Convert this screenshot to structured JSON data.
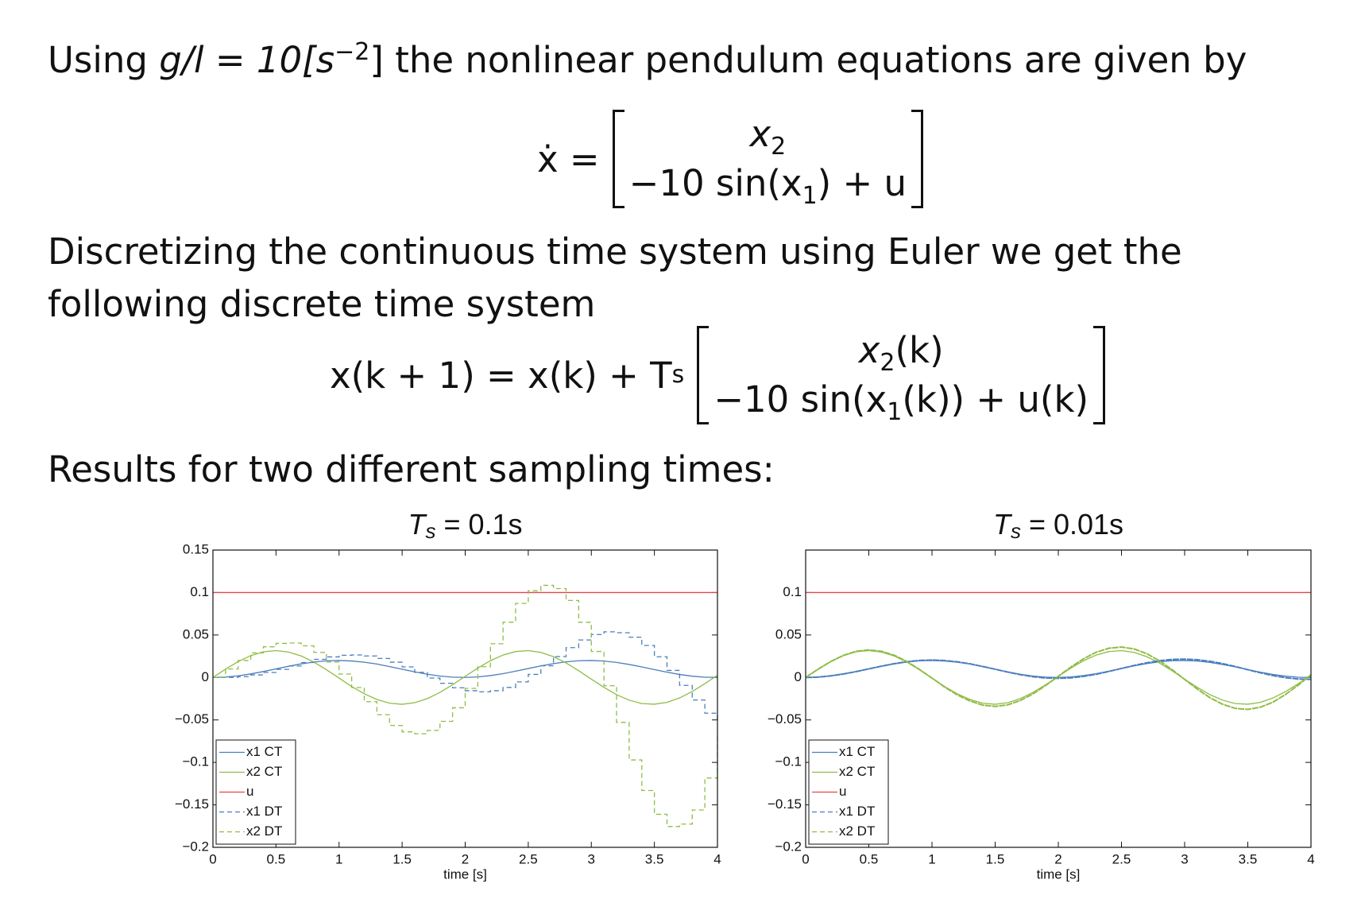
{
  "intro": {
    "before": "Using",
    "math": "g/l = 10[s",
    "sup": "−2",
    "math_after": "]",
    "after": "the nonlinear pendulum equations are given by"
  },
  "equation_1": {
    "lhs": "ẋ =",
    "row_1": {
      "var": "x",
      "sub": "2"
    },
    "row_2": {
      "before": "−10 sin(x",
      "sub": "1",
      "after": ") + u"
    }
  },
  "discretize": "Discretizing the continuous time system using Euler we get the following discrete time system",
  "equation_2": {
    "lhs": "x(k + 1) = x(k) + T",
    "lhs_sub": "s",
    "row_1": {
      "var": "x",
      "sub": "2",
      "after": "(k)"
    },
    "row_2": {
      "before": "−10 sin(x",
      "sub": "1",
      "after": "(k)) + u(k)"
    }
  },
  "results": "Results for two different sampling times:",
  "chart_data": [
    {
      "type": "line",
      "title": {
        "symbol": "T",
        "subscript": "s",
        "text": "= 0.1s"
      },
      "xlabel": "time [s]",
      "x": [
        0,
        0.1,
        0.2,
        0.3,
        0.4,
        0.5,
        0.6,
        0.7,
        0.8,
        0.9,
        1,
        1.1,
        1.2,
        1.3,
        1.4,
        1.5,
        1.6,
        1.7,
        1.8,
        1.9,
        2,
        2.1,
        2.2,
        2.3,
        2.4,
        2.5,
        2.6,
        2.7,
        2.8,
        2.9,
        3,
        3.1,
        3.2,
        3.3,
        3.4,
        3.5,
        3.6,
        3.7,
        3.8,
        3.9,
        4
      ],
      "xlim": [
        0,
        4
      ],
      "xticks": [
        0,
        0.5,
        1,
        1.5,
        2,
        2.5,
        3,
        3.5,
        4
      ],
      "ylim": [
        -0.2,
        0.15
      ],
      "yticks": [
        0.15,
        0.1,
        0.05,
        0,
        {
          "value": -0.05,
          "label": "−0.05"
        },
        {
          "value": -0.1,
          "label": "−0.1"
        },
        {
          "value": -0.15,
          "label": "−0.15"
        },
        {
          "value": -0.2,
          "label": "−0.2"
        }
      ],
      "grid": false,
      "legend": "lower left",
      "series": [
        {
          "name": "x1 CT",
          "color": "#4a7ebb",
          "values": [
            0,
            0.0005,
            0.0019,
            0.0042,
            0.007,
            0.0101,
            0.0132,
            0.016,
            0.0182,
            0.0196,
            0.02,
            0.0194,
            0.0179,
            0.0158,
            0.0128,
            0.0097,
            0.0066,
            0.0038,
            0.0017,
            0.0004,
            0,
            0.0006,
            0.0022,
            0.0045,
            0.0074,
            0.0105,
            0.0136,
            0.0163,
            0.0184,
            0.0197,
            0.02,
            0.0193,
            0.0177,
            0.0153,
            0.0124,
            0.0093,
            0.0062,
            0.0035,
            0.0015,
            0.0003,
            0
          ]
        },
        {
          "name": "x2 CT",
          "color": "#8fbc45",
          "values": [
            0,
            0.0098,
            0.0187,
            0.0257,
            0.0302,
            0.0316,
            0.0299,
            0.0253,
            0.0181,
            0.0091,
            -0.0007,
            -0.0107,
            -0.0192,
            -0.0259,
            -0.0303,
            -0.0316,
            -0.0297,
            -0.0249,
            -0.0176,
            -0.0086,
            0.0013,
            0.0111,
            0.0197,
            0.0264,
            0.0305,
            0.0316,
            0.0295,
            0.0245,
            0.0171,
            0.0079,
            -0.002,
            -0.0116,
            -0.0203,
            -0.0267,
            -0.0307,
            -0.0315,
            -0.0293,
            -0.0241,
            -0.0165,
            -0.0073,
            0.0026
          ]
        },
        {
          "name": "u",
          "color": "#e0474c",
          "x": [
            0,
            4
          ],
          "values": [
            0.1,
            0.1
          ]
        },
        {
          "name": "x1 DT",
          "color": "#4a7ebb",
          "dashed": true,
          "step": true,
          "values": [
            0,
            0,
            0.001,
            0.003,
            0.0059,
            0.0095,
            0.0135,
            0.0176,
            0.0213,
            0.0242,
            0.0261,
            0.0265,
            0.0253,
            0.0224,
            0.018,
            0.0124,
            0.006,
            -0.0007,
            -0.0069,
            -0.0121,
            -0.0156,
            -0.0169,
            -0.0156,
            -0.0117,
            -0.0052,
            0.0036,
            0.0138,
            0.0246,
            0.0351,
            0.0441,
            0.0506,
            0.0537,
            0.0527,
            0.0474,
            0.0377,
            0.0244,
            0.0083,
            -0.0093,
            -0.0265,
            -0.0421,
            -0.054
          ]
        },
        {
          "name": "x2 DT",
          "color": "#8fbc45",
          "dashed": true,
          "step": true,
          "values": [
            0,
            0.01,
            0.02,
            0.0289,
            0.0361,
            0.0401,
            0.0405,
            0.0372,
            0.0295,
            0.0182,
            0.004,
            -0.0119,
            -0.0285,
            -0.0438,
            -0.0565,
            -0.064,
            -0.0663,
            -0.0623,
            -0.0517,
            -0.0357,
            -0.0128,
            0.0127,
            0.0397,
            0.065,
            0.0872,
            0.1021,
            0.1084,
            0.1046,
            0.0907,
            0.0649,
            0.0306,
            -0.0098,
            -0.0529,
            -0.0971,
            -0.1331,
            -0.1611,
            -0.1755,
            -0.1726,
            -0.156,
            -0.1184,
            -0.0659
          ]
        }
      ]
    },
    {
      "type": "line",
      "title": {
        "symbol": "T",
        "subscript": "s",
        "text": "= 0.01s"
      },
      "xlabel": "time [s]",
      "x": [
        0,
        0.1,
        0.2,
        0.3,
        0.4,
        0.5,
        0.6,
        0.7,
        0.8,
        0.9,
        1,
        1.1,
        1.2,
        1.3,
        1.4,
        1.5,
        1.6,
        1.7,
        1.8,
        1.9,
        2,
        2.1,
        2.2,
        2.3,
        2.4,
        2.5,
        2.6,
        2.7,
        2.8,
        2.9,
        3,
        3.1,
        3.2,
        3.3,
        3.4,
        3.5,
        3.6,
        3.7,
        3.8,
        3.9,
        4
      ],
      "xlim": [
        0,
        4
      ],
      "xticks": [
        0,
        0.5,
        1,
        1.5,
        2,
        2.5,
        3,
        3.5,
        4
      ],
      "ylim": [
        -0.2,
        0.15
      ],
      "yticks": [
        0.1,
        0.05,
        0,
        {
          "value": -0.05,
          "label": "−0.05"
        },
        {
          "value": -0.1,
          "label": "−0.1"
        },
        {
          "value": -0.15,
          "label": "−0.15"
        },
        {
          "value": -0.2,
          "label": "−0.2"
        }
      ],
      "grid": false,
      "legend": "lower left",
      "series": [
        {
          "name": "x1 CT",
          "color": "#4a7ebb",
          "values": [
            0,
            0.0005,
            0.0019,
            0.0042,
            0.007,
            0.0101,
            0.0132,
            0.016,
            0.0182,
            0.0196,
            0.02,
            0.0194,
            0.0179,
            0.0158,
            0.0128,
            0.0097,
            0.0066,
            0.0038,
            0.0017,
            0.0004,
            0,
            0.0006,
            0.0022,
            0.0045,
            0.0074,
            0.0105,
            0.0136,
            0.0163,
            0.0184,
            0.0197,
            0.02,
            0.0193,
            0.0177,
            0.0153,
            0.0124,
            0.0093,
            0.0062,
            0.0035,
            0.0015,
            0.0003,
            0
          ]
        },
        {
          "name": "x2 CT",
          "color": "#8fbc45",
          "values": [
            0,
            0.0098,
            0.0187,
            0.0257,
            0.0302,
            0.0316,
            0.0299,
            0.0253,
            0.0181,
            0.0091,
            -0.0007,
            -0.0107,
            -0.0192,
            -0.0259,
            -0.0303,
            -0.0316,
            -0.0297,
            -0.0249,
            -0.0176,
            -0.0086,
            0.0013,
            0.0111,
            0.0197,
            0.0264,
            0.0305,
            0.0316,
            0.0295,
            0.0245,
            0.0171,
            0.0079,
            -0.002,
            -0.0116,
            -0.0203,
            -0.0267,
            -0.0307,
            -0.0315,
            -0.0293,
            -0.0241,
            -0.0165,
            -0.0073,
            0.0026
          ]
        },
        {
          "name": "u",
          "color": "#e0474c",
          "x": [
            0,
            4
          ],
          "values": [
            0.1,
            0.1
          ]
        },
        {
          "name": "x1 DT",
          "color": "#4a7ebb",
          "dashed": true,
          "values": [
            0,
            0.0004,
            0.0019,
            0.0041,
            0.0069,
            0.0101,
            0.0133,
            0.0162,
            0.0185,
            0.02,
            0.0205,
            0.0199,
            0.0184,
            0.0161,
            0.013,
            0.0097,
            0.0063,
            0.0033,
            0.0009,
            -0.0006,
            -0.001,
            -0.0004,
            0.0013,
            0.0038,
            0.0071,
            0.0106,
            0.0141,
            0.0172,
            0.0197,
            0.0212,
            0.0216,
            0.0209,
            0.019,
            0.0163,
            0.0129,
            0.0091,
            0.0055,
            0.0022,
            -0.0003,
            -0.0018,
            -0.0022
          ]
        },
        {
          "name": "x2 DT",
          "color": "#8fbc45",
          "dashed": true,
          "values": [
            0,
            0.0099,
            0.0189,
            0.0261,
            0.0308,
            0.0324,
            0.0308,
            0.0262,
            0.0189,
            0.0095,
            -0.0007,
            -0.0113,
            -0.0204,
            -0.0276,
            -0.0325,
            -0.0341,
            -0.0322,
            -0.0271,
            -0.0193,
            -0.0094,
            0.0014,
            0.0123,
            0.022,
            0.0297,
            0.0344,
            0.0358,
            0.0336,
            0.028,
            0.0196,
            0.0092,
            -0.0023,
            -0.0136,
            -0.0238,
            -0.0315,
            -0.0364,
            -0.0376,
            -0.035,
            -0.029,
            -0.0199,
            -0.0089,
            0.0032
          ]
        }
      ]
    }
  ]
}
